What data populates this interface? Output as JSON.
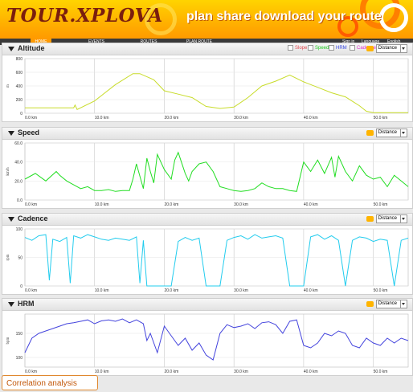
{
  "header": {
    "logo": "TOUR.XPLOVA",
    "slogan": "plan  share  download  your route"
  },
  "nav": {
    "items": [
      {
        "label": "HOME",
        "active": true
      },
      {
        "label": "EVENTS",
        "active": false
      },
      {
        "label": "ROUTES",
        "active": false
      },
      {
        "label": "PLAN ROUTE",
        "active": false
      }
    ],
    "right_items": [
      {
        "label": "Sign in"
      },
      {
        "label": "Language"
      },
      {
        "label": "English"
      }
    ]
  },
  "panels": {
    "altitude": {
      "title": "Altitude",
      "legend": [
        {
          "label": "Slope",
          "color": "#e0484f"
        },
        {
          "label": "Speed",
          "color": "#22cc22"
        },
        {
          "label": "HRM",
          "color": "#3344dd"
        },
        {
          "label": "Cadence",
          "color": "#dd33cc"
        }
      ],
      "axis_select": "Distance"
    },
    "speed": {
      "title": "Speed",
      "axis_select": "Distance"
    },
    "cadence": {
      "title": "Cadence",
      "axis_select": "Distance"
    },
    "hrm": {
      "title": "HRM",
      "axis_select": "Distance"
    }
  },
  "chart_data": [
    {
      "type": "line",
      "title": "Altitude",
      "ylabel": "m",
      "ylim": [
        0,
        800
      ],
      "yticks": [
        "0",
        "200",
        "400",
        "600",
        "800"
      ],
      "xlim": [
        0,
        55
      ],
      "xticks": [
        "0.0 km",
        "10.0 km",
        "20.0 km",
        "30.0 km",
        "40.0 km",
        "50.0 km"
      ],
      "color": "#c8dc2a",
      "series": [
        {
          "x": [
            0,
            3,
            7,
            7.2,
            7.5,
            10,
            13,
            15.5,
            16.5,
            18.5,
            20,
            22,
            24,
            26,
            28,
            30,
            32,
            34,
            36,
            38,
            40,
            42,
            44,
            46,
            48,
            49,
            50,
            52,
            55
          ],
          "y": [
            80,
            80,
            80,
            120,
            55,
            180,
            420,
            580,
            580,
            490,
            330,
            280,
            230,
            100,
            70,
            90,
            230,
            400,
            470,
            560,
            460,
            380,
            300,
            240,
            110,
            30,
            10,
            10,
            10
          ]
        }
      ]
    },
    {
      "type": "line",
      "title": "Speed",
      "ylabel": "km/h",
      "ylim": [
        0,
        60
      ],
      "yticks": [
        "0.0",
        "20.0",
        "40.0",
        "60.0"
      ],
      "xlim": [
        0,
        55
      ],
      "xticks": [
        "0.0 km",
        "10.0 km",
        "20.0 km",
        "30.0 km",
        "40.0 km",
        "50.0 km"
      ],
      "color": "#22dd22",
      "series": [
        {
          "x": [
            0,
            1.5,
            3,
            4.5,
            5,
            6,
            7,
            8,
            9,
            9.5,
            10,
            11,
            12,
            13,
            14,
            15,
            15.5,
            16,
            17,
            17.5,
            18,
            18.5,
            19,
            20,
            21,
            21.5,
            22,
            23,
            23.5,
            24,
            25,
            26,
            27,
            28,
            29,
            30,
            31,
            32,
            33,
            34,
            35,
            36,
            37,
            38,
            39,
            40,
            41,
            42,
            43,
            44,
            44.5,
            45,
            46,
            47,
            48,
            49,
            50,
            51,
            52,
            53,
            54,
            55
          ],
          "y": [
            22,
            28,
            20,
            30,
            26,
            20,
            16,
            12,
            14,
            12,
            10,
            10,
            11,
            9,
            10,
            10,
            22,
            38,
            12,
            44,
            30,
            18,
            48,
            32,
            22,
            42,
            50,
            28,
            20,
            30,
            38,
            40,
            30,
            14,
            12,
            10,
            9,
            10,
            12,
            18,
            14,
            12,
            12,
            10,
            9,
            40,
            30,
            42,
            28,
            45,
            24,
            46,
            30,
            20,
            36,
            26,
            22,
            24,
            14,
            26,
            20,
            14
          ]
        }
      ]
    },
    {
      "type": "line",
      "title": "Cadence",
      "ylabel": "rpm",
      "ylim": [
        0,
        100
      ],
      "yticks": [
        "0",
        "50",
        "100"
      ],
      "xlim": [
        0,
        55
      ],
      "xticks": [
        "0.0 km",
        "10.0 km",
        "20.0 km",
        "30.0 km",
        "40.0 km",
        "50.0 km"
      ],
      "color": "#22ccee",
      "series": [
        {
          "x": [
            0,
            1,
            2,
            3,
            3.5,
            4,
            5,
            6,
            6.5,
            7,
            8,
            9,
            10,
            11,
            12,
            13,
            14,
            15,
            16,
            16.5,
            17,
            17.5,
            18,
            19,
            20,
            21,
            22,
            23,
            24,
            25,
            26,
            27,
            28,
            29,
            30,
            31,
            32,
            33,
            34,
            35,
            36,
            37,
            38,
            39,
            40,
            41,
            42,
            43,
            44,
            45,
            46,
            47,
            48,
            49,
            50,
            51,
            52,
            53,
            54,
            55
          ],
          "y": [
            85,
            80,
            88,
            90,
            10,
            82,
            78,
            85,
            5,
            88,
            84,
            90,
            86,
            82,
            80,
            84,
            82,
            80,
            86,
            5,
            80,
            0,
            0,
            0,
            0,
            0,
            78,
            85,
            80,
            84,
            0,
            0,
            0,
            80,
            85,
            88,
            82,
            90,
            84,
            86,
            88,
            84,
            0,
            0,
            0,
            86,
            90,
            82,
            88,
            80,
            0,
            80,
            86,
            84,
            78,
            82,
            80,
            0,
            80,
            84
          ]
        }
      ]
    },
    {
      "type": "line",
      "title": "HRM",
      "ylabel": "bpm",
      "ylim": [
        80,
        190
      ],
      "yticks": [
        "100",
        "150"
      ],
      "xlim": [
        0,
        55
      ],
      "xticks": [
        "0.0 km",
        "10.0 km",
        "20.0 km",
        "30.0 km",
        "40.0 km",
        "50.0 km"
      ],
      "color": "#4444dd",
      "series": [
        {
          "x": [
            0,
            1,
            2,
            3,
            4,
            5,
            6,
            7,
            8,
            9,
            10,
            11,
            12,
            13,
            14,
            15,
            16,
            17,
            17.5,
            18,
            19,
            20,
            21,
            22,
            23,
            24,
            25,
            26,
            27,
            28,
            29,
            30,
            31,
            32,
            33,
            34,
            35,
            36,
            37,
            38,
            39,
            40,
            41,
            42,
            43,
            44,
            45,
            46,
            47,
            48,
            49,
            50,
            51,
            52,
            53,
            54,
            55
          ],
          "y": [
            110,
            140,
            150,
            155,
            160,
            165,
            170,
            172,
            175,
            178,
            170,
            176,
            178,
            175,
            180,
            172,
            178,
            170,
            135,
            150,
            110,
            165,
            145,
            125,
            140,
            115,
            130,
            105,
            95,
            150,
            168,
            162,
            165,
            170,
            160,
            172,
            174,
            168,
            150,
            175,
            178,
            125,
            120,
            130,
            150,
            145,
            155,
            150,
            125,
            120,
            140,
            130,
            125,
            140,
            130,
            140,
            135
          ]
        }
      ]
    }
  ],
  "footer": {
    "correlation_label": "Correlation analysis"
  }
}
